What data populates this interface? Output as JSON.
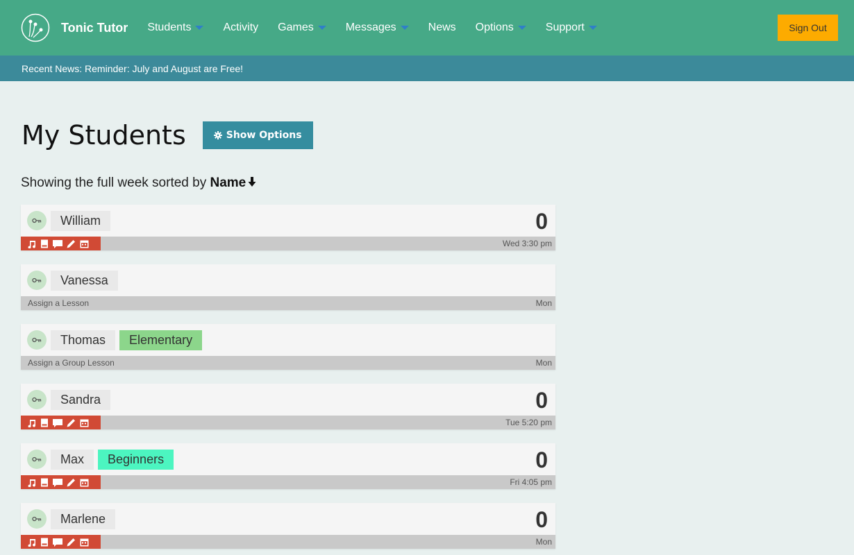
{
  "nav": {
    "brand": "Tonic Tutor",
    "items": [
      {
        "label": "Students",
        "dropdown": true
      },
      {
        "label": "Activity",
        "dropdown": false
      },
      {
        "label": "Games",
        "dropdown": true
      },
      {
        "label": "Messages",
        "dropdown": true
      },
      {
        "label": "News",
        "dropdown": false
      },
      {
        "label": "Options",
        "dropdown": true
      },
      {
        "label": "Support",
        "dropdown": true
      }
    ],
    "sign_out": "Sign Out"
  },
  "news": "Recent News: Reminder: July and August are Free!",
  "page": {
    "title": "My Students",
    "show_options": "Show Options",
    "sort_prefix": "Showing the full week sorted by ",
    "sort_field": "Name",
    "sort_icon": "arrow-down-icon"
  },
  "colors": {
    "nav": "#46a987",
    "news": "#3c8a9a",
    "button": "#358d9f",
    "sign_out": "#fdab00",
    "activity_bar": "#d14a35"
  },
  "students": [
    {
      "name": "William",
      "tag": "",
      "count": "0",
      "footer": "",
      "time": "Wed 3:30 pm"
    },
    {
      "name": "Vanessa",
      "tag": "",
      "count": "",
      "footer": "Assign a Lesson",
      "time": "Mon"
    },
    {
      "name": "Thomas",
      "tag": "Elementary",
      "tag_color": "#8cd68b",
      "count": "",
      "footer": "Assign a Group Lesson",
      "time": "Mon"
    },
    {
      "name": "Sandra",
      "tag": "",
      "count": "0",
      "footer": "",
      "time": "Tue 5:20 pm"
    },
    {
      "name": "Max",
      "tag": "Beginners",
      "tag_color": "#4cf5c0",
      "count": "0",
      "footer": "",
      "time": "Fri 4:05 pm"
    },
    {
      "name": "Marlene",
      "tag": "",
      "count": "0",
      "footer": "",
      "time": "Mon"
    }
  ]
}
